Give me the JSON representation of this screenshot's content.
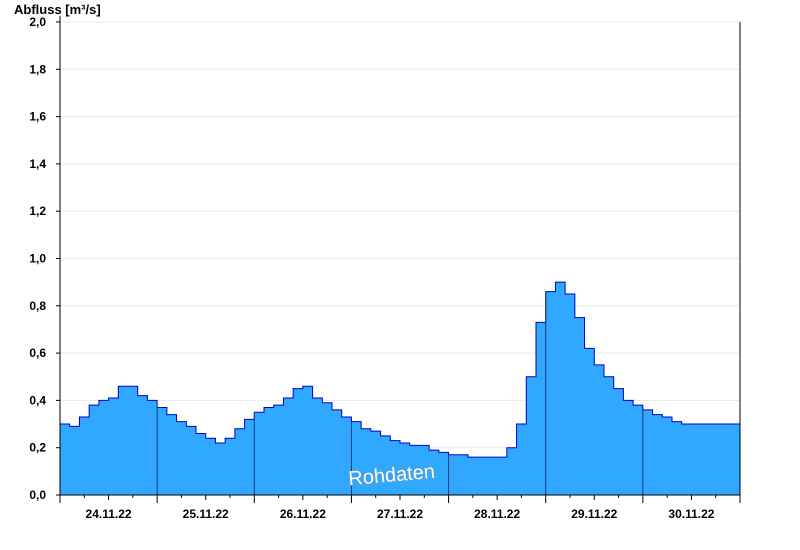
{
  "chart_data": {
    "type": "area",
    "ylabel": "Abfluss [m³/s]",
    "ylim": [
      0,
      2.0
    ],
    "yticks": [
      "0,0",
      "0,2",
      "0,4",
      "0,6",
      "0,8",
      "1,0",
      "1,2",
      "1,4",
      "1,6",
      "1,8",
      "2,0"
    ],
    "xlim": [
      0,
      7
    ],
    "xtick_labels": [
      "24.11.22",
      "25.11.22",
      "26.11.22",
      "27.11.22",
      "28.11.22",
      "29.11.22",
      "30.11.22"
    ],
    "grid": true,
    "fill_color": "#30A8FF",
    "line_color": "#0000C8",
    "annotation": "Rohdaten",
    "series": [
      {
        "x": [
          0.0,
          0.1,
          0.2,
          0.3,
          0.4,
          0.5,
          0.6,
          0.7,
          0.8,
          0.9,
          1.0,
          1.1,
          1.2,
          1.3,
          1.4,
          1.5,
          1.6,
          1.7,
          1.8,
          1.9,
          2.0,
          2.1,
          2.2,
          2.3,
          2.4,
          2.5,
          2.6,
          2.7,
          2.8,
          2.9,
          3.0,
          3.1,
          3.2,
          3.3,
          3.4,
          3.5,
          3.6,
          3.7,
          3.8,
          3.9,
          4.0,
          4.1,
          4.2,
          4.3,
          4.4,
          4.5,
          4.6,
          4.7,
          4.8,
          4.9,
          5.0,
          5.1,
          5.2,
          5.3,
          5.4,
          5.5,
          5.6,
          5.7,
          5.8,
          5.9,
          6.0,
          6.1,
          6.2,
          6.3,
          6.4,
          6.5,
          6.6,
          6.7,
          6.8,
          6.9,
          7.0
        ],
        "y": [
          0.3,
          0.29,
          0.33,
          0.38,
          0.4,
          0.41,
          0.46,
          0.46,
          0.42,
          0.4,
          0.37,
          0.34,
          0.31,
          0.29,
          0.26,
          0.24,
          0.22,
          0.24,
          0.28,
          0.32,
          0.35,
          0.37,
          0.38,
          0.41,
          0.45,
          0.46,
          0.41,
          0.39,
          0.36,
          0.33,
          0.31,
          0.28,
          0.27,
          0.25,
          0.23,
          0.22,
          0.21,
          0.21,
          0.19,
          0.18,
          0.17,
          0.17,
          0.16,
          0.16,
          0.16,
          0.16,
          0.2,
          0.3,
          0.5,
          0.73,
          0.86,
          0.9,
          0.85,
          0.75,
          0.62,
          0.55,
          0.5,
          0.45,
          0.4,
          0.38,
          0.36,
          0.34,
          0.33,
          0.31,
          0.3,
          0.3,
          0.3,
          0.3,
          0.3,
          0.3,
          0.3
        ]
      }
    ]
  }
}
